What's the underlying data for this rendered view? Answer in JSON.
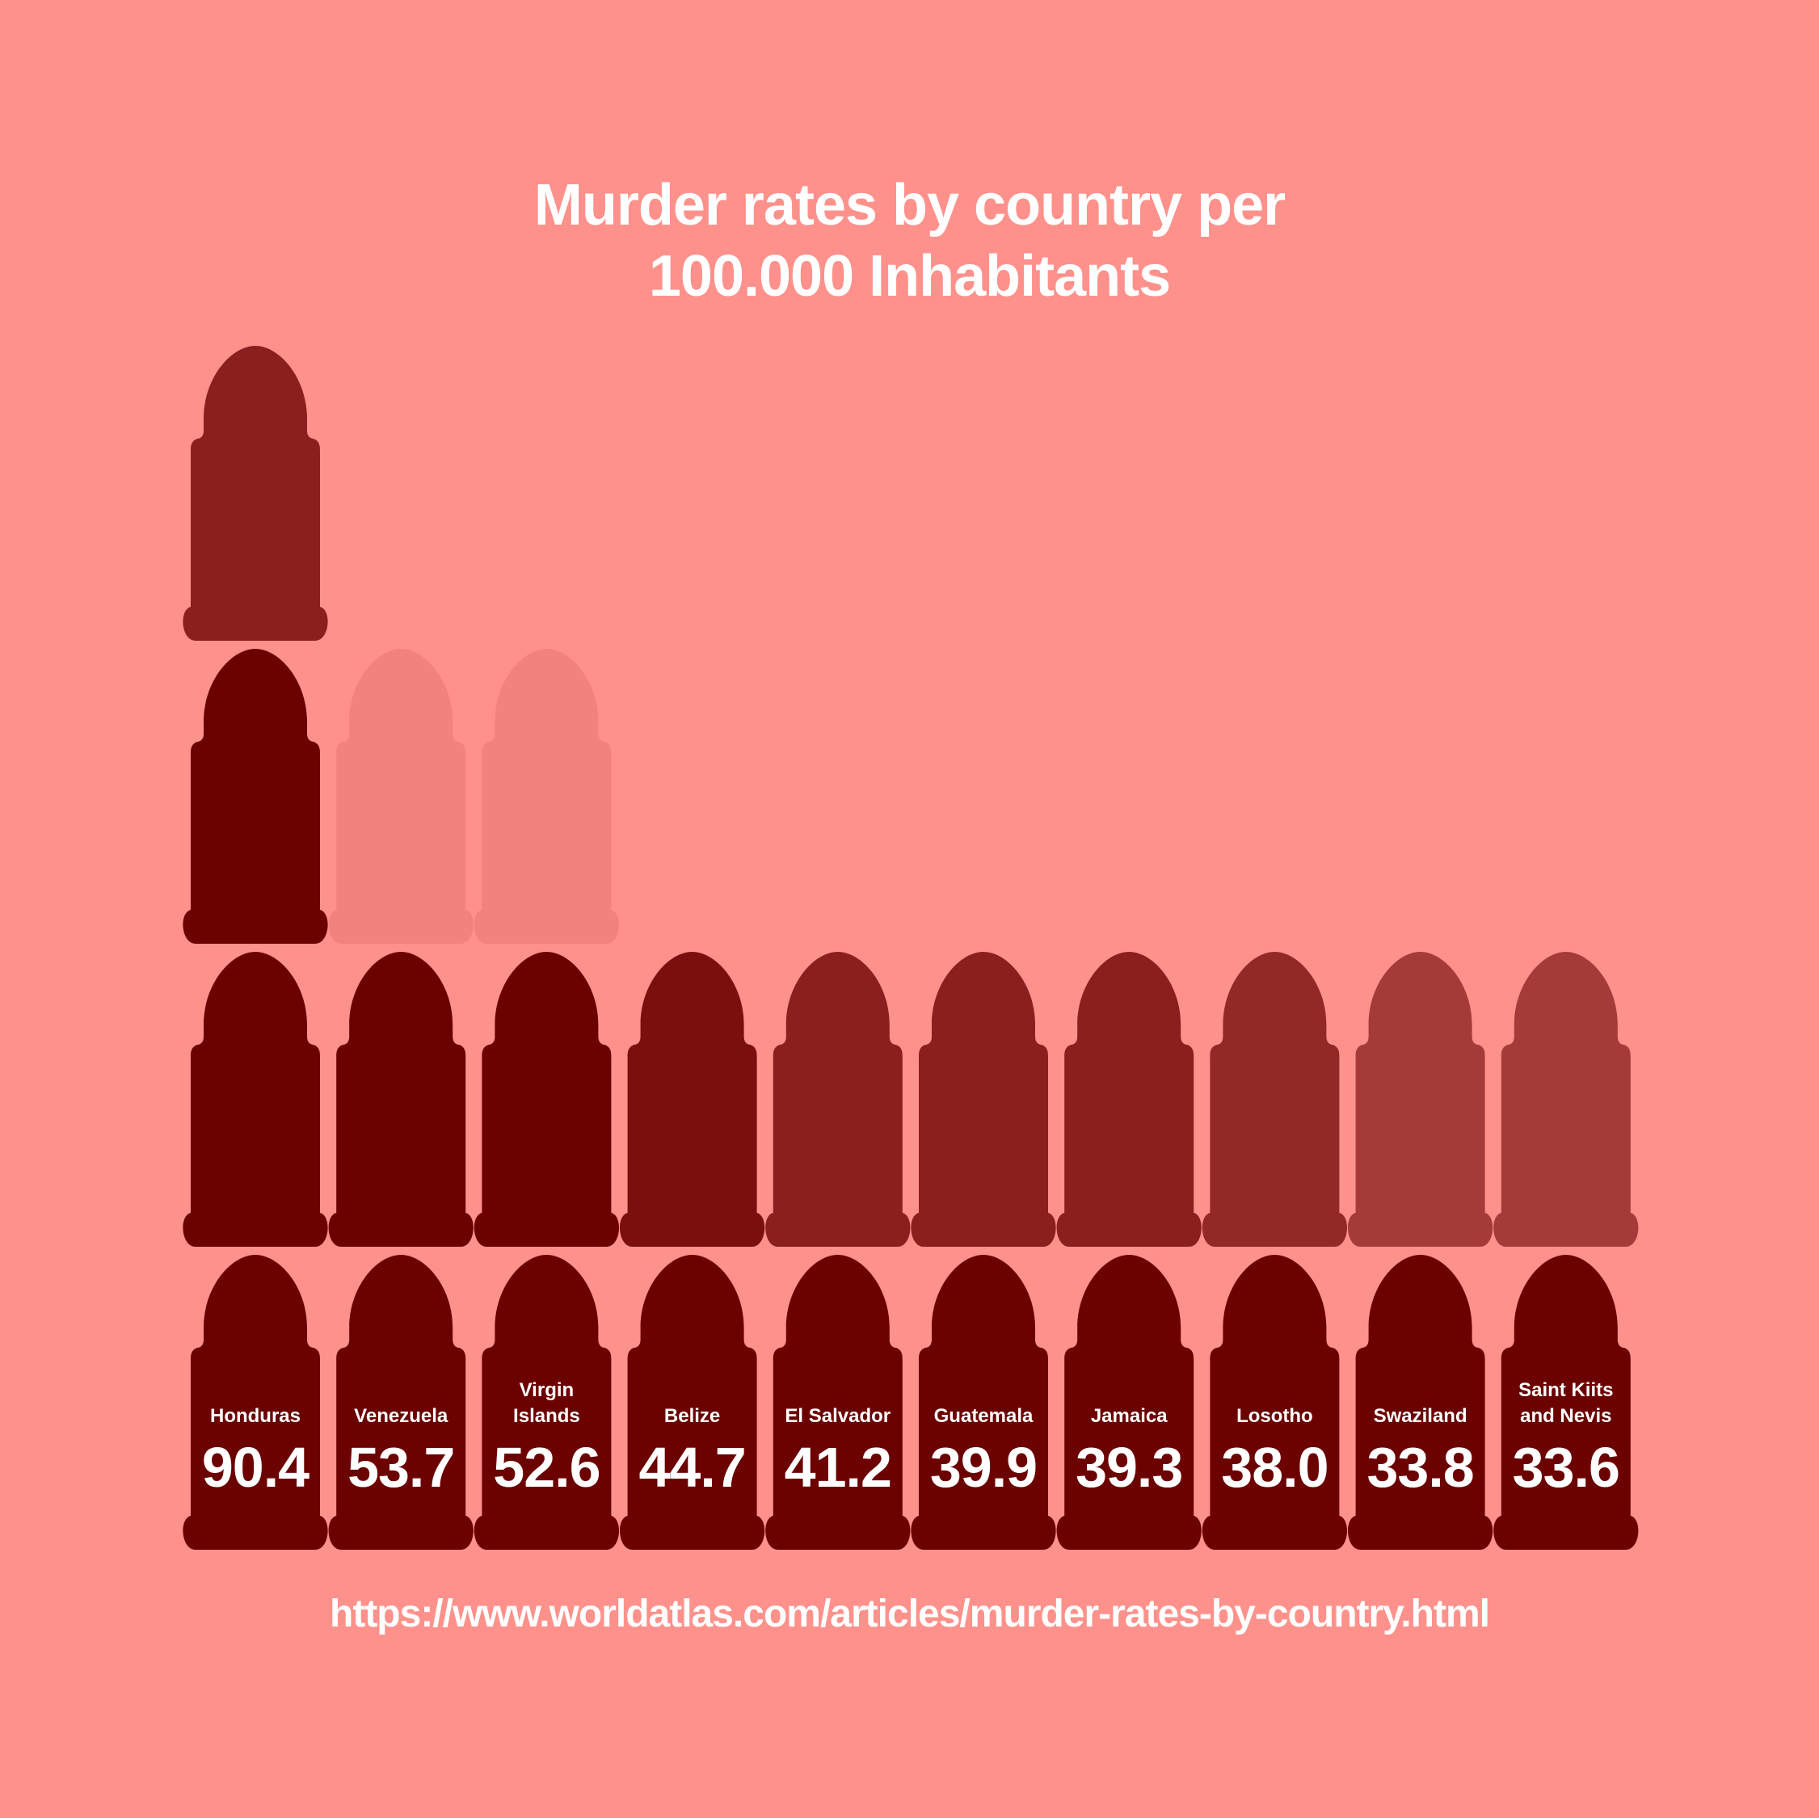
{
  "title": {
    "line1": "Murder rates by country per",
    "line2": "100.000 Inhabitants"
  },
  "source": "https://www.worldatlas.com/articles/murder-rates-by-country.html",
  "colors": {
    "background": "#fe918b",
    "dark": "#6b0200",
    "medium": "#8a1f1e",
    "lighter": "#a53b38",
    "faded": "#f0837d",
    "text": "#ffffff"
  },
  "chart_data": {
    "type": "bar",
    "title": "Murder rates by country per 100.000 Inhabitants",
    "categories": [
      "Honduras",
      "Venezuela",
      "Virgin Islands",
      "Belize",
      "El Salvador",
      "Guatemala",
      "Jamaica",
      "Losotho",
      "Swaziland",
      "Saint Kiits and Nevis"
    ],
    "category_lines": [
      [
        "Honduras"
      ],
      [
        "Venezuela"
      ],
      [
        "Virgin",
        "Islands"
      ],
      [
        "Belize"
      ],
      [
        "El Salvador"
      ],
      [
        "Guatemala"
      ],
      [
        "Jamaica"
      ],
      [
        "Losotho"
      ],
      [
        "Swaziland"
      ],
      [
        "Saint Kiits",
        "and Nevis"
      ]
    ],
    "value_labels": [
      "90.4",
      "53.7",
      "52.6",
      "44.7",
      "41.2",
      "39.9",
      "39.3",
      "38.0",
      "33.8",
      "33.6"
    ],
    "values": [
      90.4,
      53.7,
      52.6,
      44.7,
      41.2,
      39.9,
      39.3,
      38.0,
      33.8,
      33.6
    ],
    "stack_colors": [
      [
        "#6b0200",
        "#6b0200",
        "#6b0200",
        "#8a1f1e"
      ],
      [
        "#6b0200",
        "#6b0200",
        "#f0837d"
      ],
      [
        "#6b0200",
        "#6b0200",
        "#f0837d"
      ],
      [
        "#6b0200",
        "#7a0f0e"
      ],
      [
        "#6b0200",
        "#8a1f1e"
      ],
      [
        "#6b0200",
        "#8a1f1e"
      ],
      [
        "#6b0200",
        "#8a1f1e"
      ],
      [
        "#6b0200",
        "#922927"
      ],
      [
        "#6b0200",
        "#a53b38"
      ],
      [
        "#6b0200",
        "#a53b38"
      ]
    ],
    "unit": "icon",
    "legend": "none",
    "grid": false
  }
}
